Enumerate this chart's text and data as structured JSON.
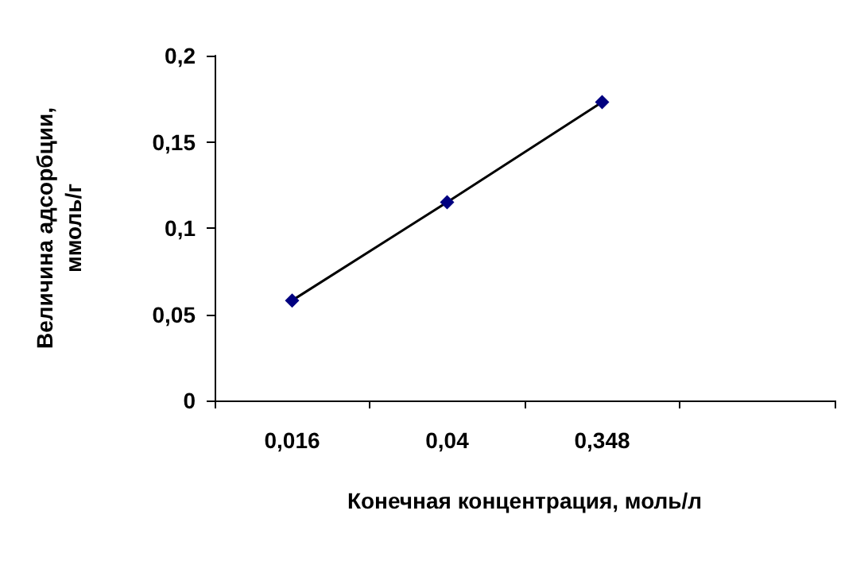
{
  "chart_data": {
    "type": "line",
    "xlabel": "Конечная концентрация, моль/л",
    "ylabel": "Величина адсорбции,\nммоль/г",
    "categories": [
      "0,016",
      "0,04",
      "0,348",
      null
    ],
    "series": [
      {
        "color": "#000080",
        "values": [
          0.058,
          0.115,
          0.173,
          null
        ]
      }
    ],
    "ylim": [
      0,
      0.2
    ],
    "yticks": [
      0,
      {
        "value": 0.05,
        "label": "0,05"
      },
      {
        "value": 0.1,
        "label": "0,1"
      },
      {
        "value": 0.15,
        "label": "0,15"
      },
      {
        "value": 0.2,
        "label": "0,2"
      }
    ],
    "grid": false,
    "marker": "diamond",
    "line_style": "solid"
  }
}
